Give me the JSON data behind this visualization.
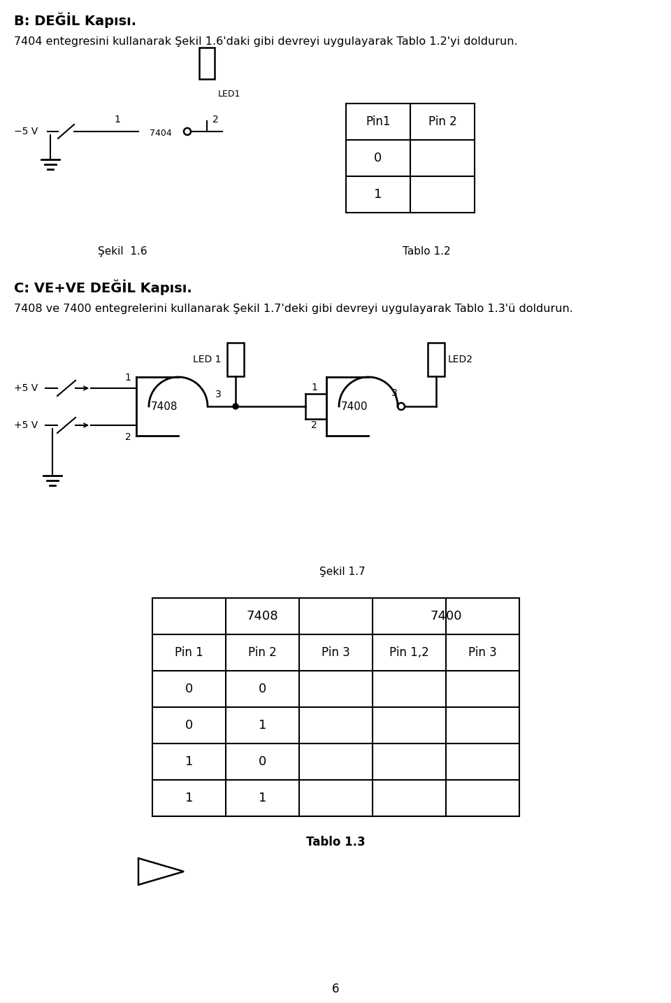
{
  "page_title_line1": "B: DEĞİL Kapısı.",
  "page_desc1": "7404 entegresini kullanarak Şekil 1.6'daki gibi devreyi uygulayarak Tablo 1.2'yi doldurun.",
  "sekil16_label": "Şekil  1.6",
  "tablo12_label": "Tablo 1.2",
  "tablo12_headers": [
    "Pin1",
    "Pin 2"
  ],
  "tablo12_rows": [
    [
      "0",
      ""
    ],
    [
      "1",
      ""
    ]
  ],
  "section_c_title": "C: VE+VE DEĞİL Kapısı.",
  "section_c_desc": "7408 ve 7400 entegrelerini kullanarak Şekil 1.7'deki gibi devreyi uygulayarak Tablo 1.3'ü doldurun.",
  "sekil17_label": "Şekil 1.7",
  "tablo13_label": "Tablo 1.3",
  "tablo13_group_headers": [
    "7408",
    "7400"
  ],
  "tablo13_col_headers": [
    "Pin 1",
    "Pin 2",
    "Pin 3",
    "Pin 1,2",
    "Pin 3"
  ],
  "tablo13_rows": [
    [
      "0",
      "0",
      "",
      "",
      ""
    ],
    [
      "0",
      "1",
      "",
      "",
      ""
    ],
    [
      "1",
      "0",
      "",
      "",
      ""
    ],
    [
      "1",
      "1",
      "",
      "",
      ""
    ]
  ],
  "page_number": "6",
  "bg_color": "#ffffff",
  "text_color": "#000000",
  "line_color": "#000000"
}
